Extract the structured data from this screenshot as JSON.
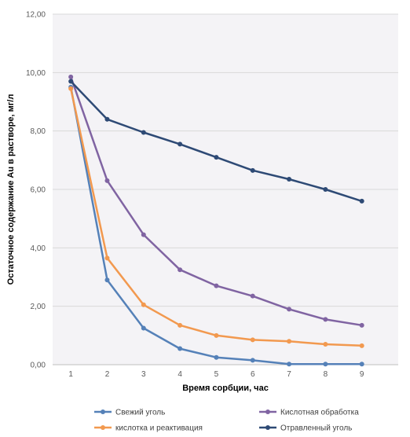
{
  "chart_data": {
    "type": "line",
    "title": "",
    "xlabel": "Время сорбции, час",
    "ylabel": "Остаточное содержание  Au в растворе, мг/л",
    "x": [
      1,
      2,
      3,
      4,
      5,
      6,
      7,
      8,
      9
    ],
    "x_tick_labels": [
      "1",
      "2",
      "3",
      "4",
      "5",
      "6",
      "7",
      "8",
      "9"
    ],
    "ylim": [
      0,
      12
    ],
    "y_ticks": [
      0,
      2,
      4,
      6,
      8,
      10,
      12
    ],
    "y_tick_labels": [
      "0,00",
      "2,00",
      "4,00",
      "6,00",
      "8,00",
      "10,00",
      "12,00"
    ],
    "grid": true,
    "legend_position": "bottom",
    "series": [
      {
        "name": "Свежий уголь",
        "color": "#5581b8",
        "values": [
          9.5,
          2.9,
          1.25,
          0.55,
          0.25,
          0.15,
          0.02,
          0.02,
          0.02
        ]
      },
      {
        "name": "Кислотная обработка",
        "color": "#8064a2",
        "values": [
          9.85,
          6.3,
          4.45,
          3.25,
          2.7,
          2.35,
          1.9,
          1.55,
          1.35
        ]
      },
      {
        "name": "кислотка и реактивация",
        "color": "#f2994f",
        "values": [
          9.45,
          3.65,
          2.05,
          1.35,
          1.0,
          0.85,
          0.8,
          0.7,
          0.65
        ]
      },
      {
        "name": "Отравленный уголь",
        "color": "#2e4a75",
        "values": [
          9.7,
          8.4,
          7.95,
          7.55,
          7.1,
          6.65,
          6.35,
          6.0,
          5.6
        ]
      }
    ]
  }
}
